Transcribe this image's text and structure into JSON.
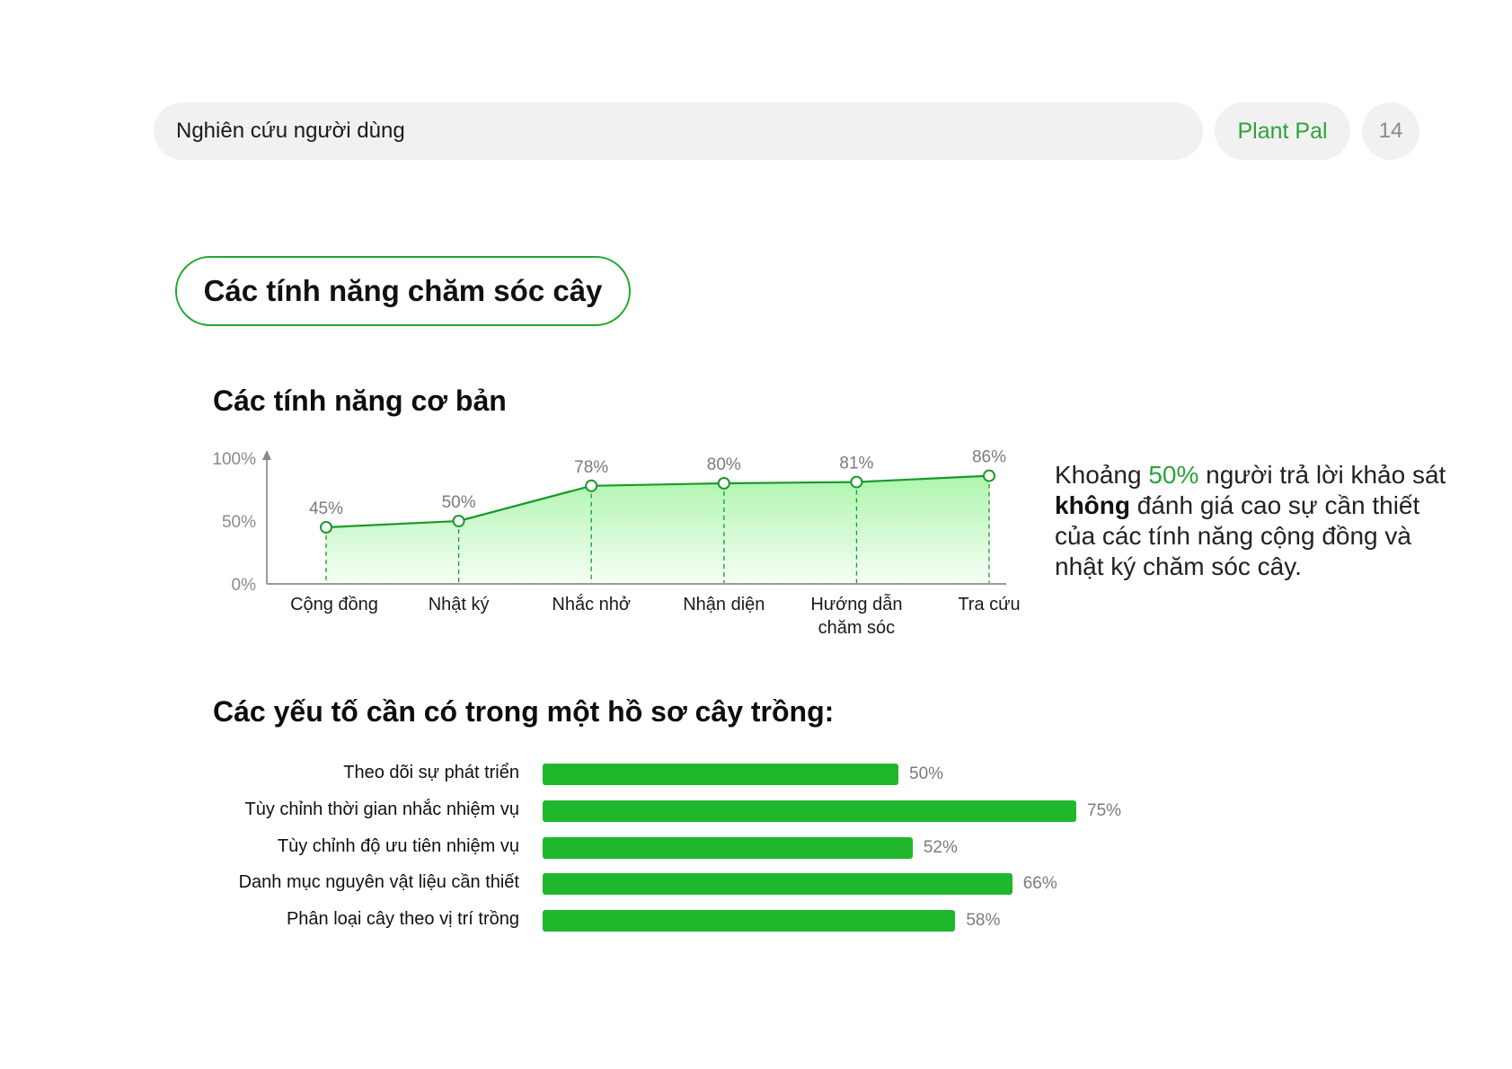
{
  "header": {
    "section_title": "Nghiên cứu người dùng",
    "brand": "Plant Pal",
    "page_number": "14"
  },
  "section_pill": "Các tính năng chăm sóc cây",
  "basic_features": {
    "title": "Các tính năng cơ bản",
    "note": {
      "part1": "Khoảng ",
      "highlight": "50%",
      "part2": " người trả lời khảo sát ",
      "bold": "không",
      "part3": " đánh giá cao sự cần thiết của các tính năng cộng đồng và nhật ký chăm sóc cây."
    }
  },
  "profile_features": {
    "title": "Các yếu tố cần có trong một hồ sơ cây trồng:"
  },
  "colors": {
    "accent": "#1fb82d",
    "line": "#1a9a2a",
    "fill_top": "#a9f5a9",
    "muted": "#7b7b7b"
  },
  "chart_data": [
    {
      "type": "line",
      "categories": [
        "Cộng đồng",
        "Nhật ký",
        "Nhắc nhở",
        "Nhận diện",
        "Hướng dẫn chăm sóc",
        "Tra cứu"
      ],
      "category_lines": [
        [
          "Cộng đồng"
        ],
        [
          "Nhật ký"
        ],
        [
          "Nhắc nhở"
        ],
        [
          "Nhận diện"
        ],
        [
          "Hướng dẫn",
          "chăm sóc"
        ],
        [
          "Tra cứu"
        ]
      ],
      "values": [
        45,
        50,
        78,
        80,
        81,
        86
      ],
      "data_labels": [
        "45%",
        "50%",
        "78%",
        "80%",
        "81%",
        "86%"
      ],
      "yticks": [
        {
          "value": 0,
          "label": "0%"
        },
        {
          "value": 50,
          "label": "50%"
        },
        {
          "value": 100,
          "label": "100%"
        }
      ],
      "ylim": [
        0,
        100
      ],
      "fill": "area-gradient",
      "grid": false
    },
    {
      "type": "bar",
      "orientation": "horizontal",
      "categories": [
        "Theo dõi sự phát triển",
        "Tùy chỉnh thời gian nhắc nhiệm vụ",
        "Tùy chỉnh độ ưu tiên nhiệm vụ",
        "Danh mục nguyên vật liệu cần thiết",
        "Phân loại cây theo vị trí trồng"
      ],
      "values": [
        50,
        75,
        52,
        66,
        58
      ],
      "data_labels": [
        "50%",
        "75%",
        "52%",
        "66%",
        "58%"
      ]
    }
  ]
}
